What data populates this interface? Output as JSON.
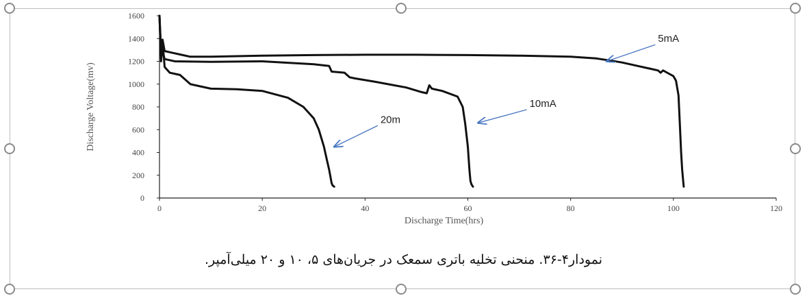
{
  "caption": "نمودار۴-۳۶. منحنی تخلیه باتری سمعک در جریان‌های ۵، ۱۰ و ۲۰ میلی‌آمپر.",
  "colors": {
    "curve": "#111111",
    "arrow": "#4a78c2",
    "axis": "#222222"
  },
  "chart_data": {
    "type": "line",
    "title": "",
    "xlabel": "Discharge Time(hrs)",
    "ylabel": "Discharge Voltage(mv)",
    "xlim": [
      0,
      120
    ],
    "ylim": [
      0,
      1600
    ],
    "xticks": [
      "0",
      "20",
      "40",
      "60",
      "80",
      "100",
      "120"
    ],
    "yticks": [
      "0",
      "200",
      "400",
      "600",
      "800",
      "1000",
      "1200",
      "1400",
      "1600"
    ],
    "grid": false,
    "series": [
      {
        "name": "5mA",
        "x": [
          0,
          0.3,
          0.6,
          1,
          2,
          4,
          6,
          10,
          20,
          30,
          40,
          50,
          60,
          70,
          80,
          85,
          88,
          90,
          93,
          95,
          96,
          97,
          97.5,
          98,
          99,
          100,
          100.5,
          101,
          101.3,
          101.5,
          101.7,
          101.9,
          102
        ],
        "y": [
          1600,
          1300,
          1390,
          1290,
          1280,
          1260,
          1240,
          1240,
          1250,
          1255,
          1258,
          1258,
          1255,
          1250,
          1240,
          1225,
          1205,
          1190,
          1160,
          1140,
          1130,
          1120,
          1100,
          1120,
          1095,
          1070,
          1030,
          900,
          600,
          400,
          250,
          150,
          100
        ]
      },
      {
        "name": "10mA",
        "x": [
          0,
          0.3,
          0.6,
          1,
          3,
          10,
          20,
          30,
          33,
          33.5,
          36,
          37,
          38,
          42,
          48,
          51,
          52,
          52.5,
          53,
          55,
          58,
          59,
          59.5,
          60,
          60.3,
          60.5,
          60.7,
          61
        ],
        "y": [
          1600,
          1230,
          1290,
          1220,
          1200,
          1195,
          1200,
          1175,
          1160,
          1110,
          1100,
          1060,
          1050,
          1020,
          970,
          930,
          920,
          990,
          960,
          940,
          890,
          800,
          650,
          450,
          250,
          150,
          120,
          100
        ]
      },
      {
        "name": "20mA",
        "x": [
          0,
          0.3,
          0.6,
          1,
          2,
          4,
          6,
          8,
          10,
          15,
          20,
          25,
          28,
          30,
          31,
          32,
          32.5,
          33,
          33.3,
          33.5,
          33.7,
          34
        ],
        "y": [
          1600,
          1200,
          1380,
          1150,
          1100,
          1080,
          1000,
          980,
          960,
          955,
          940,
          880,
          800,
          700,
          600,
          450,
          350,
          250,
          180,
          130,
          110,
          100
        ]
      }
    ],
    "annotations": [
      {
        "text": "5mA",
        "x": 97,
        "y": 1370,
        "arrow_to": [
          87,
          1200
        ]
      },
      {
        "text": "10mA",
        "x": 72,
        "y": 800,
        "arrow_to": [
          62,
          660
        ]
      },
      {
        "text": "20m",
        "x": 43,
        "y": 660,
        "arrow_to": [
          34,
          450
        ]
      }
    ]
  }
}
